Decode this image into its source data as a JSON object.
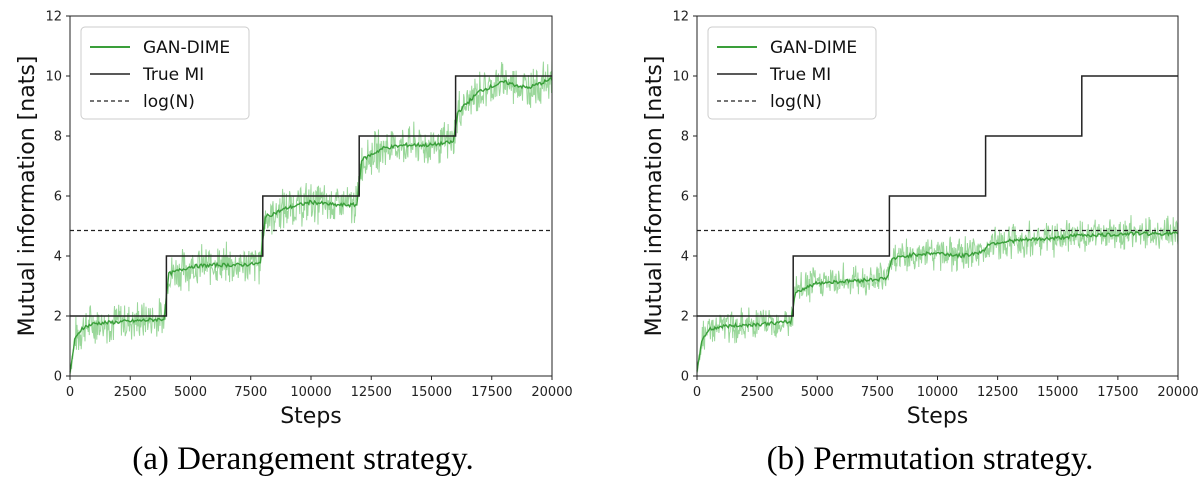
{
  "chart_data": [
    {
      "type": "line",
      "caption": "(a) Derangement strategy.",
      "xlabel": "Steps",
      "ylabel": "Mutual information [nats]",
      "xlim": [
        0,
        20000
      ],
      "ylim": [
        0,
        12
      ],
      "xticks": [
        0,
        2500,
        5000,
        7500,
        10000,
        12500,
        15000,
        17500,
        20000
      ],
      "yticks": [
        0,
        2,
        4,
        6,
        8,
        10,
        12
      ],
      "legend_position": "top-left",
      "legend": [
        "GAN-DIME",
        "True MI",
        "log(N)"
      ],
      "colors": {
        "estimate_raw": "#8fd38f",
        "estimate_smooth": "#3a9f3a",
        "true_mi": "#222222",
        "logN": "#222222"
      },
      "series": [
        {
          "name": "True MI",
          "style": "solid",
          "x": [
            0,
            4000,
            4000,
            8000,
            8000,
            12000,
            12000,
            16000,
            16000,
            20000
          ],
          "values": [
            2,
            2,
            4,
            4,
            6,
            6,
            8,
            8,
            10,
            10
          ]
        },
        {
          "name": "log(N)",
          "style": "dashed",
          "x": [
            0,
            20000
          ],
          "values": [
            4.85,
            4.85
          ]
        },
        {
          "name": "GAN-DIME",
          "style": "solid",
          "x": [
            0,
            200,
            500,
            1000,
            2000,
            3000,
            3900,
            4100,
            5000,
            6000,
            7000,
            7900,
            8100,
            9000,
            10000,
            11000,
            11900,
            12100,
            13000,
            14000,
            15000,
            15900,
            16100,
            17000,
            18000,
            19000,
            20000
          ],
          "values": [
            0.1,
            1.2,
            1.6,
            1.75,
            1.8,
            1.85,
            1.9,
            3.4,
            3.65,
            3.7,
            3.7,
            3.75,
            5.3,
            5.6,
            5.8,
            5.7,
            5.7,
            7.2,
            7.6,
            7.7,
            7.7,
            7.8,
            8.8,
            9.5,
            9.8,
            9.6,
            9.9
          ],
          "band": 0.55
        }
      ]
    },
    {
      "type": "line",
      "caption": "(b) Permutation strategy.",
      "xlabel": "Steps",
      "ylabel": "Mutual information [nats]",
      "xlim": [
        0,
        20000
      ],
      "ylim": [
        0,
        12
      ],
      "xticks": [
        0,
        2500,
        5000,
        7500,
        10000,
        12500,
        15000,
        17500,
        20000
      ],
      "yticks": [
        0,
        2,
        4,
        6,
        8,
        10,
        12
      ],
      "legend_position": "top-left",
      "legend": [
        "GAN-DIME",
        "True MI",
        "log(N)"
      ],
      "colors": {
        "estimate_raw": "#8fd38f",
        "estimate_smooth": "#3a9f3a",
        "true_mi": "#222222",
        "logN": "#222222"
      },
      "series": [
        {
          "name": "True MI",
          "style": "solid",
          "x": [
            0,
            4000,
            4000,
            8000,
            8000,
            12000,
            12000,
            16000,
            16000,
            20000
          ],
          "values": [
            2,
            2,
            4,
            4,
            6,
            6,
            8,
            8,
            10,
            10
          ]
        },
        {
          "name": "log(N)",
          "style": "dashed",
          "x": [
            0,
            20000
          ],
          "values": [
            4.85,
            4.85
          ]
        },
        {
          "name": "GAN-DIME",
          "style": "solid",
          "x": [
            0,
            200,
            500,
            1000,
            2000,
            3000,
            3900,
            4100,
            5000,
            6000,
            7000,
            7900,
            8100,
            9000,
            10000,
            11000,
            11900,
            12100,
            13000,
            14000,
            15000,
            16000,
            17000,
            18000,
            19000,
            20000
          ],
          "values": [
            0.1,
            1.2,
            1.55,
            1.65,
            1.7,
            1.75,
            1.8,
            2.8,
            3.1,
            3.15,
            3.2,
            3.25,
            3.9,
            4.05,
            4.1,
            4.0,
            4.15,
            4.4,
            4.5,
            4.55,
            4.6,
            4.7,
            4.7,
            4.75,
            4.75,
            4.75
          ],
          "band": 0.45
        }
      ]
    }
  ]
}
